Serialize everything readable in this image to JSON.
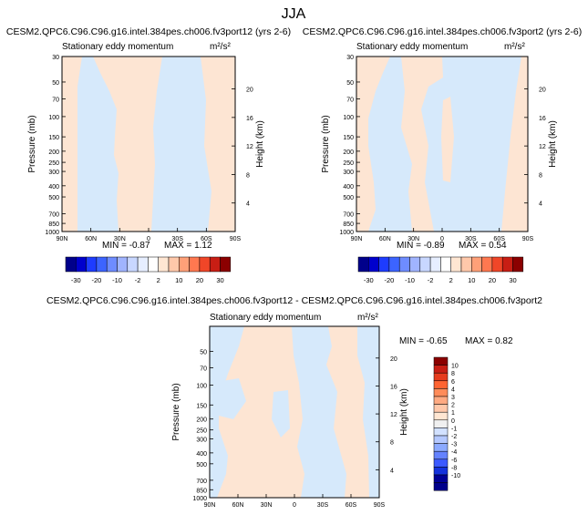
{
  "page": {
    "title": "JJA"
  },
  "colors": {
    "blue": "#d6e9fb",
    "peach": "#fde5d3",
    "bar_top": [
      "#00008b",
      "#0000cd",
      "#1e3cff",
      "#3c64ff",
      "#6e8cff",
      "#a0b4ff",
      "#c8d7ff",
      "#e6eeff",
      "#ffffff",
      "#ffe6d2",
      "#ffc8aa",
      "#ffa078",
      "#ff7850",
      "#f04628",
      "#c81e14",
      "#8b0000"
    ],
    "bar_right": [
      "#8b0000",
      "#c81e14",
      "#e63c1e",
      "#ff6432",
      "#ff8c5a",
      "#ffaa82",
      "#ffc8aa",
      "#ffe6d2",
      "#f0f0f0",
      "#d2e1ff",
      "#b4c8ff",
      "#8caaff",
      "#6482ff",
      "#3c5aff",
      "#1432dc",
      "#000096",
      "#00008b"
    ]
  },
  "chart_data": [
    {
      "type": "heatmap",
      "title": "CESM2.QPC6.C96.C96.g16.intel.384pes.ch006.fv3port12 (yrs 2-6)",
      "subtitle": "Stationary eddy momentum",
      "units": "m²/s²",
      "ylabel": "Pressure (mb)",
      "y2label": "Height (km)",
      "x_ticks": [
        "90N",
        "60N",
        "30N",
        "0",
        "30S",
        "60S",
        "90S"
      ],
      "y_ticks": [
        "30",
        "50",
        "70",
        "100",
        "150",
        "200",
        "250",
        "300",
        "400",
        "500",
        "700",
        "850",
        "1000"
      ],
      "y2_ticks": [
        "20",
        "16",
        "12",
        "8",
        "4"
      ],
      "min_label": "MIN = -0.87",
      "max_label": "MAX = 1.12",
      "colorbar_labels": [
        "-30",
        "-20",
        "-10",
        "-2",
        "2",
        "10",
        "20",
        "30"
      ]
    },
    {
      "type": "heatmap",
      "title": "CESM2.QPC6.C96.C96.g16.intel.384pes.ch006.fv3port2 (yrs 2-6)",
      "subtitle": "Stationary eddy momentum",
      "units": "m²/s²",
      "ylabel": "Pressure (mb)",
      "y2label": "Height (km)",
      "x_ticks": [
        "90N",
        "60N",
        "30N",
        "0",
        "30S",
        "60S",
        "90S"
      ],
      "y_ticks": [
        "30",
        "50",
        "70",
        "100",
        "150",
        "200",
        "250",
        "300",
        "400",
        "500",
        "700",
        "850",
        "1000"
      ],
      "y2_ticks": [
        "20",
        "16",
        "12",
        "8",
        "4"
      ],
      "min_label": "MIN = -0.89",
      "max_label": "MAX = 0.54",
      "colorbar_labels": [
        "-30",
        "-20",
        "-10",
        "-2",
        "2",
        "10",
        "20",
        "30"
      ]
    },
    {
      "type": "heatmap",
      "title": "CESM2.QPC6.C96.C96.g16.intel.384pes.ch006.fv3port12 - CESM2.QPC6.C96.C96.g16.intel.384pes.ch006.fv3port2",
      "subtitle": "Stationary eddy momentum",
      "units": "m²/s²",
      "ylabel": "Pressure (mb)",
      "y2label": "Height (km)",
      "x_ticks": [
        "90N",
        "60N",
        "30N",
        "0",
        "30S",
        "60S",
        "90S"
      ],
      "y_ticks": [
        "50",
        "70",
        "100",
        "150",
        "200",
        "250",
        "300",
        "400",
        "500",
        "700",
        "850",
        "1000"
      ],
      "y2_ticks": [
        "20",
        "16",
        "12",
        "8",
        "4"
      ],
      "min_label": "MIN = -0.65",
      "max_label": "MAX =  0.82",
      "colorbar_labels": [
        "10",
        "8",
        "6",
        "4",
        "3",
        "2",
        "1",
        "0",
        "-1",
        "-2",
        "-3",
        "-4",
        "-6",
        "-8",
        "-10"
      ]
    }
  ]
}
